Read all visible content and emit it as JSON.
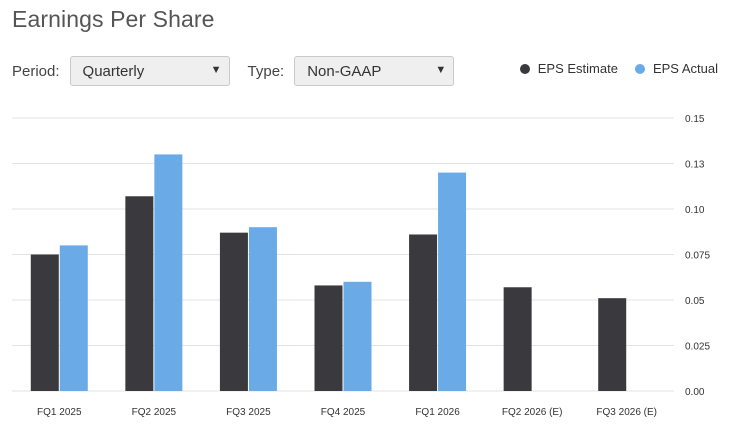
{
  "header": {
    "title": "Earnings Per Share"
  },
  "controls": {
    "period": {
      "label": "Period:",
      "value": "Quarterly"
    },
    "type": {
      "label": "Type:",
      "value": "Non-GAAP"
    }
  },
  "legend": [
    {
      "label": "EPS Estimate",
      "color": "#3a3a3e"
    },
    {
      "label": "EPS Actual",
      "color": "#6aaae6"
    }
  ],
  "chart_data": {
    "type": "bar",
    "title": "Earnings Per Share",
    "xlabel": "",
    "ylabel": "",
    "categories": [
      "FQ1 2025",
      "FQ2 2025",
      "FQ3 2025",
      "FQ4 2025",
      "FQ1 2026",
      "FQ2 2026 (E)",
      "FQ3 2026 (E)"
    ],
    "series": [
      {
        "name": "EPS Estimate",
        "color": "#3a3a3e",
        "values": [
          0.075,
          0.107,
          0.087,
          0.058,
          0.086,
          0.057,
          0.051
        ]
      },
      {
        "name": "EPS Actual",
        "color": "#6aaae6",
        "values": [
          0.08,
          0.13,
          0.09,
          0.06,
          0.12,
          null,
          null
        ]
      }
    ],
    "ylim": [
      0,
      0.15
    ],
    "yticks": [
      "0.00",
      "0.025",
      "0.05",
      "0.075",
      "0.10",
      "0.13",
      "0.15"
    ],
    "grid": true,
    "legend_position": "top-right"
  }
}
